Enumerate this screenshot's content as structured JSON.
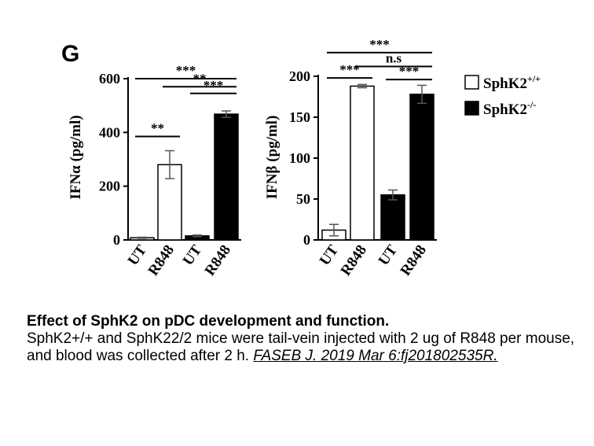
{
  "panel_letter": "G",
  "legend": [
    {
      "label": "SphK2",
      "sup": "+/+",
      "fill": "#ffffff"
    },
    {
      "label": "SphK2",
      "sup": "-/-",
      "fill": "#000000"
    }
  ],
  "chart_data": [
    {
      "type": "bar",
      "ylabel": "IFNα (pg/ml)",
      "ylim": [
        0,
        600
      ],
      "yticks": [
        "0",
        "200",
        "400",
        "600"
      ],
      "categories": [
        "UT",
        "R848",
        "UT",
        "R848"
      ],
      "values": [
        8,
        280,
        15,
        468
      ],
      "errors": [
        2,
        52,
        3,
        12
      ],
      "fills": [
        "#ffffff",
        "#ffffff",
        "#000000",
        "#000000"
      ],
      "significance": [
        {
          "from": 0,
          "to": 1,
          "label": "**",
          "y": 385
        },
        {
          "from": 2,
          "to": 3,
          "label": "***",
          "y": 545
        },
        {
          "from": 1,
          "to": 3,
          "label": "**",
          "y": 570
        },
        {
          "from": 0,
          "to": 3,
          "label": "***",
          "y": 600
        }
      ]
    },
    {
      "type": "bar",
      "ylabel": "IFNβ (pg/ml)",
      "ylim": [
        0,
        200
      ],
      "yticks": [
        "0",
        "50",
        "100",
        "150",
        "200"
      ],
      "categories": [
        "UT",
        "R848",
        "UT",
        "R848"
      ],
      "values": [
        12,
        188,
        55,
        178
      ],
      "errors": [
        7,
        2,
        6,
        11
      ],
      "fills": [
        "#ffffff",
        "#ffffff",
        "#000000",
        "#000000"
      ],
      "significance": [
        {
          "from": 0,
          "to": 1,
          "label": "***",
          "y": 198
        },
        {
          "from": 2,
          "to": 3,
          "label": "***",
          "y": 196
        },
        {
          "from": 1,
          "to": 3,
          "label": "n.s",
          "y": 212
        },
        {
          "from": 0,
          "to": 3,
          "label": "***",
          "y": 229
        }
      ]
    }
  ],
  "caption": {
    "title": "Effect of SphK2 on pDC development and function.",
    "body": "SphK2+/+ and SphK22/2 mice were tail-vein injected with 2 ug of R848 per mouse, and blood was collected after 2 h. ",
    "citation": "FASEB J. 2019 Mar 6:fj201802535R."
  }
}
